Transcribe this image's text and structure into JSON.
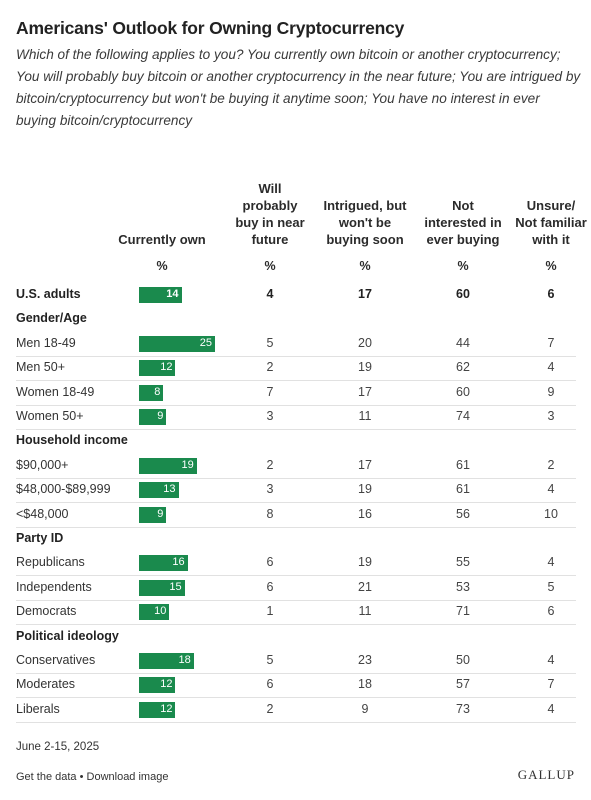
{
  "chart_data": {
    "type": "table",
    "title": "Americans' Outlook for Owning Cryptocurrency",
    "subtitle": "Which of the following applies to you? You currently own bitcoin or another cryptocurrency; You will probably buy bitcoin or another cryptocurrency in the near future; You are intrigued by bitcoin/cryptocurrency but won't be buying it anytime soon; You have no interest in ever buying bitcoin/cryptocurrency",
    "columns": [
      {
        "label": "Currently own",
        "unit": "%"
      },
      {
        "label": "Will probably buy in near future",
        "unit": "%"
      },
      {
        "label": "Intrigued, but won't be buying soon",
        "unit": "%"
      },
      {
        "label": "Not interested in ever buying",
        "unit": "%"
      },
      {
        "label": "Unsure/ Not familiar with it",
        "unit": "%"
      }
    ],
    "bar_max": 25,
    "bar_color": "#1a8a4d",
    "rows": [
      {
        "kind": "total",
        "label": "U.S. adults",
        "values": [
          14,
          4,
          17,
          60,
          6
        ]
      },
      {
        "kind": "section",
        "label": "Gender/Age"
      },
      {
        "kind": "data",
        "label": "Men 18-49",
        "values": [
          25,
          5,
          20,
          44,
          7
        ]
      },
      {
        "kind": "data",
        "label": "Men 50+",
        "values": [
          12,
          2,
          19,
          62,
          4
        ]
      },
      {
        "kind": "data",
        "label": "Women 18-49",
        "values": [
          8,
          7,
          17,
          60,
          9
        ]
      },
      {
        "kind": "data",
        "label": "Women 50+",
        "values": [
          9,
          3,
          11,
          74,
          3
        ]
      },
      {
        "kind": "section",
        "label": "Household income"
      },
      {
        "kind": "data",
        "label": "$90,000+",
        "values": [
          19,
          2,
          17,
          61,
          2
        ]
      },
      {
        "kind": "data",
        "label": "$48,000-$89,999",
        "values": [
          13,
          3,
          19,
          61,
          4
        ]
      },
      {
        "kind": "data",
        "label": "<$48,000",
        "values": [
          9,
          8,
          16,
          56,
          10
        ]
      },
      {
        "kind": "section",
        "label": "Party ID"
      },
      {
        "kind": "data",
        "label": "Republicans",
        "values": [
          16,
          6,
          19,
          55,
          4
        ]
      },
      {
        "kind": "data",
        "label": "Independents",
        "values": [
          15,
          6,
          21,
          53,
          5
        ]
      },
      {
        "kind": "data",
        "label": "Democrats",
        "values": [
          10,
          1,
          11,
          71,
          6
        ]
      },
      {
        "kind": "section",
        "label": "Political ideology"
      },
      {
        "kind": "data",
        "label": "Conservatives",
        "values": [
          18,
          5,
          23,
          50,
          4
        ]
      },
      {
        "kind": "data",
        "label": "Moderates",
        "values": [
          12,
          6,
          18,
          57,
          7
        ]
      },
      {
        "kind": "data",
        "label": "Liberals",
        "values": [
          12,
          2,
          9,
          73,
          4
        ]
      }
    ],
    "footnote": "June 2-15, 2025",
    "links": "Get the data • Download image",
    "brand": "GALLUP"
  }
}
